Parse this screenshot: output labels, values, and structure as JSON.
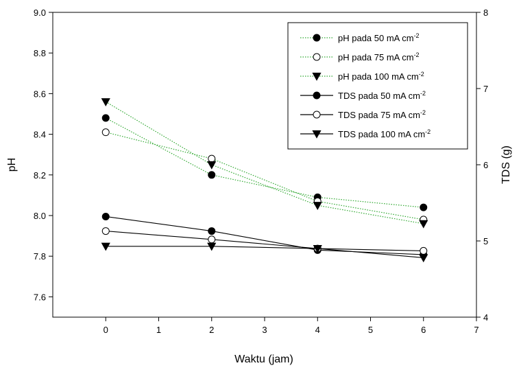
{
  "chart_data": {
    "type": "line",
    "xlabel": "Waktu (jam)",
    "ylabel": "pH",
    "y2label": "TDS (g)",
    "xlim": [
      -1,
      7
    ],
    "ylim": [
      7.5,
      9.0
    ],
    "y2lim": [
      4,
      8
    ],
    "xticks": [
      "0",
      "1",
      "2",
      "3",
      "4",
      "5",
      "6",
      "7"
    ],
    "yticks": [
      "7.6",
      "7.8",
      "8.0",
      "8.2",
      "8.4",
      "8.6",
      "8.8",
      "9.0"
    ],
    "y2ticks": [
      "4",
      "5",
      "6",
      "7",
      "8"
    ],
    "legend_position": "top-right",
    "series": [
      {
        "name": "pH pada 50 mA cm",
        "name_sup": "-2",
        "axis": "left",
        "marker": "filled-circle",
        "line_style": "dotted",
        "color": "#2fa830",
        "x": [
          0,
          2,
          4,
          6
        ],
        "values": [
          8.48,
          8.2,
          8.09,
          8.04
        ]
      },
      {
        "name": "pH pada 75 mA cm",
        "name_sup": "-2",
        "axis": "left",
        "marker": "open-circle",
        "line_style": "dotted",
        "color": "#2fa830",
        "x": [
          0,
          2,
          4,
          6
        ],
        "values": [
          8.41,
          8.28,
          8.07,
          7.98
        ]
      },
      {
        "name": "pH pada 100 mA cm",
        "name_sup": "-2",
        "axis": "left",
        "marker": "filled-triangle-down",
        "line_style": "dotted",
        "color": "#2fa830",
        "x": [
          0,
          2,
          4,
          6
        ],
        "values": [
          8.56,
          8.25,
          8.05,
          7.96
        ]
      },
      {
        "name": "TDS pada 50 mA cm",
        "name_sup": "-2",
        "axis": "right",
        "marker": "filled-circle",
        "line_style": "solid",
        "color": "#000000",
        "x": [
          0,
          2,
          4,
          6
        ],
        "values": [
          5.32,
          5.13,
          4.88,
          4.82
        ]
      },
      {
        "name": "TDS pada 75 mA cm",
        "name_sup": "-2",
        "axis": "right",
        "marker": "open-circle",
        "line_style": "solid",
        "color": "#000000",
        "x": [
          0,
          2,
          4,
          6
        ],
        "values": [
          5.13,
          5.02,
          4.9,
          4.87
        ]
      },
      {
        "name": "TDS pada 100 mA cm",
        "name_sup": "-2",
        "axis": "right",
        "marker": "filled-triangle-down",
        "line_style": "solid",
        "color": "#000000",
        "x": [
          0,
          2,
          4,
          6
        ],
        "values": [
          4.93,
          4.93,
          4.9,
          4.78
        ]
      }
    ]
  }
}
